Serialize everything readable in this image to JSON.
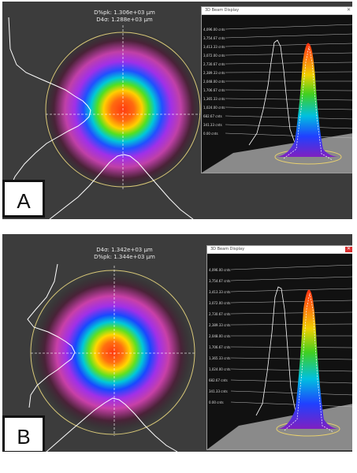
{
  "panels": [
    {
      "letter": "A",
      "readout": [
        "D%pk: 1.306e+03 µm",
        "D4σ: 1.288e+03 µm"
      ],
      "window_title": "3D Beam Display",
      "ticks": [
        "4,096.00 cnts",
        "3,754.67 cnts",
        "3,413.33 cnts",
        "3,072.00 cnts",
        "2,730.67 cnts",
        "2,389.33 cnts",
        "2,048.00 cnts",
        "1,706.67 cnts",
        "1,365.33 cnts",
        "1,024.00 cnts",
        "682.67 cnts",
        "341.33 cnts",
        "0.00 cnts"
      ]
    },
    {
      "letter": "B",
      "readout": [
        "D4σ: 1.342e+03 µm",
        "D%pk: 1.344e+03 µm"
      ],
      "window_title": "3D Beam Display",
      "ticks": [
        "4,096.00 cnts",
        "3,754.67 cnts",
        "3,413.33 cnts",
        "3,072.00 cnts",
        "2,730.67 cnts",
        "2,389.33 cnts",
        "2,048.00 cnts",
        "1,706.67 cnts",
        "1,365.33 cnts",
        "1,024.00 cnts",
        "682.67 cnts",
        "341.33 cnts",
        "0.00 cnts"
      ]
    }
  ],
  "colors": {
    "panel_background": "#3c3c3c",
    "aperture_ring": "#d8c878",
    "crosshair": "#ffffff",
    "profile_trace": "#ffffff"
  },
  "icons": {
    "close": "close-icon"
  }
}
